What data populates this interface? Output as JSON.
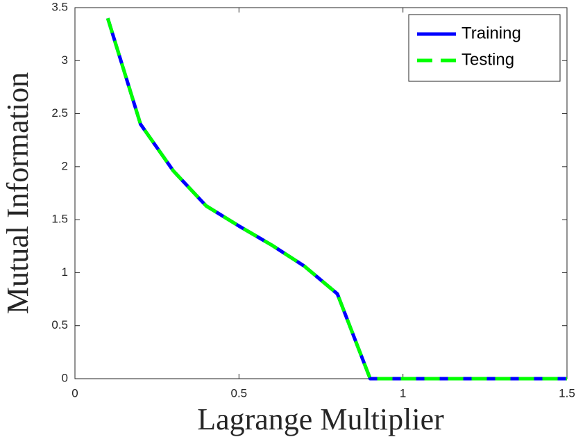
{
  "chart_data": {
    "type": "line",
    "xlabel": "Lagrange Multiplier",
    "ylabel": "Mutual Information",
    "x": [
      0.1,
      0.2,
      0.3,
      0.4,
      0.5,
      0.6,
      0.7,
      0.8,
      0.9,
      1.0,
      1.1,
      1.2,
      1.3,
      1.4,
      1.5
    ],
    "series": [
      {
        "name": "Training",
        "color": "#0000ff",
        "line_style": "solid",
        "values": [
          3.4,
          2.4,
          1.96,
          1.63,
          1.44,
          1.26,
          1.06,
          0.8,
          0,
          0,
          0,
          0,
          0,
          0,
          0
        ]
      },
      {
        "name": "Testing",
        "color": "#00ff00",
        "line_style": "dashed",
        "values": [
          3.4,
          2.4,
          1.96,
          1.63,
          1.44,
          1.26,
          1.06,
          0.8,
          0,
          0,
          0,
          0,
          0,
          0,
          0
        ]
      }
    ],
    "xlim": [
      0,
      1.5
    ],
    "xticks": [
      0,
      0.5,
      1,
      1.5
    ],
    "ylim": [
      0,
      3.5
    ],
    "yticks": [
      0,
      0.5,
      1,
      1.5,
      2,
      2.5,
      3,
      3.5
    ],
    "grid": false,
    "legend_position": "upper right"
  }
}
